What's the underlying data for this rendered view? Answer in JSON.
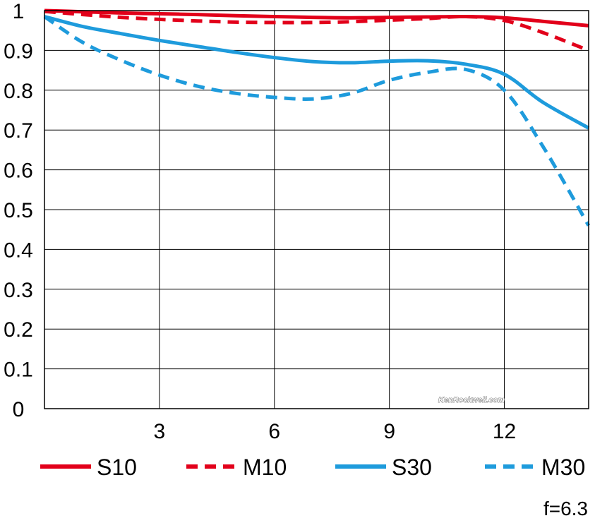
{
  "chart_data": {
    "type": "line",
    "title": "",
    "xlabel": "",
    "ylabel": "",
    "xlim": [
      0,
      14.2
    ],
    "ylim": [
      0,
      1
    ],
    "x_ticks": [
      3,
      6,
      9,
      12
    ],
    "x_tick_labels": [
      "3",
      "6",
      "9",
      "12"
    ],
    "y_ticks": [
      0,
      0.1,
      0.2,
      0.3,
      0.4,
      0.5,
      0.6,
      0.7,
      0.8,
      0.9,
      1
    ],
    "y_tick_labels": [
      "0",
      "0.1",
      "0.2",
      "0.3",
      "0.4",
      "0.5",
      "0.6",
      "0.7",
      "0.8",
      "0.9",
      "1"
    ],
    "grid": true,
    "legend_position": "bottom",
    "annotation": "f=6.3",
    "watermark": "KenRockwell.com",
    "series": [
      {
        "name": "S10",
        "color": "#e2001a",
        "style": "solid",
        "x": [
          0,
          1,
          2,
          3,
          4,
          5,
          6,
          7,
          8,
          9,
          10,
          11,
          12,
          13,
          14.2
        ],
        "y": [
          1.0,
          0.997,
          0.994,
          0.992,
          0.99,
          0.987,
          0.985,
          0.983,
          0.982,
          0.983,
          0.984,
          0.985,
          0.982,
          0.973,
          0.962
        ]
      },
      {
        "name": "M10",
        "color": "#e2001a",
        "style": "dashed",
        "x": [
          0,
          1,
          2,
          3,
          4,
          5,
          6,
          7,
          8,
          9,
          10,
          11,
          12,
          13,
          14.2
        ],
        "y": [
          0.998,
          0.99,
          0.983,
          0.978,
          0.974,
          0.971,
          0.97,
          0.97,
          0.972,
          0.976,
          0.98,
          0.985,
          0.975,
          0.945,
          0.9
        ]
      },
      {
        "name": "S30",
        "color": "#1e9bdc",
        "style": "solid",
        "x": [
          0,
          1,
          2,
          3,
          4,
          5,
          6,
          7,
          8,
          9,
          10,
          11,
          12,
          13,
          14.2
        ],
        "y": [
          0.985,
          0.96,
          0.942,
          0.925,
          0.91,
          0.895,
          0.882,
          0.872,
          0.869,
          0.873,
          0.874,
          0.865,
          0.84,
          0.77,
          0.705
        ]
      },
      {
        "name": "M30",
        "color": "#1e9bdc",
        "style": "dashed",
        "x": [
          0,
          1,
          2,
          3,
          4,
          5,
          6,
          7,
          8,
          9,
          10,
          11,
          12,
          13,
          14.2
        ],
        "y": [
          0.985,
          0.92,
          0.875,
          0.838,
          0.81,
          0.792,
          0.782,
          0.778,
          0.792,
          0.825,
          0.845,
          0.852,
          0.8,
          0.66,
          0.46
        ]
      }
    ]
  }
}
